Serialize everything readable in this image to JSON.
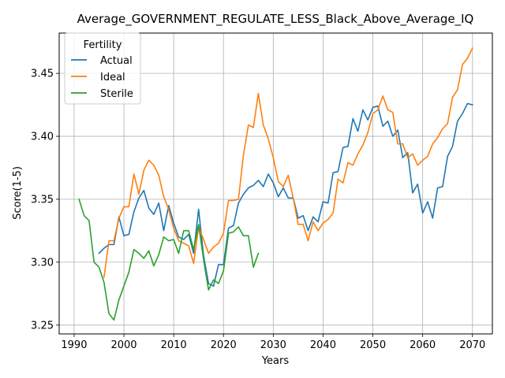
{
  "chart_data": {
    "type": "line",
    "title": "Average_GOVERNMENT_REGULATE_LESS_Black_Above_Average_IQ",
    "xlabel": "Years",
    "ylabel": "Score(1-5)",
    "xlim": [
      1987,
      2074
    ],
    "ylim": [
      3.243,
      3.482
    ],
    "xticks": [
      1990,
      2000,
      2010,
      2020,
      2030,
      2040,
      2050,
      2060,
      2070
    ],
    "yticks": [
      3.25,
      3.3,
      3.35,
      3.4,
      3.45
    ],
    "ytick_labels": [
      "3.25",
      "3.30",
      "3.35",
      "3.40",
      "3.45"
    ],
    "grid": true,
    "legend": {
      "title": "Fertility",
      "position": "top-left"
    },
    "series": [
      {
        "name": "Actual",
        "color": "#1f77b4",
        "x": [
          1995,
          1996,
          1997,
          1998,
          1999,
          2000,
          2001,
          2002,
          2003,
          2004,
          2005,
          2006,
          2007,
          2008,
          2009,
          2010,
          2011,
          2012,
          2013,
          2014,
          2015,
          2016,
          2017,
          2018,
          2019,
          2020,
          2021,
          2022,
          2023,
          2024,
          2025,
          2026,
          2027,
          2028,
          2029,
          2030,
          2031,
          2032,
          2033,
          2034,
          2035,
          2036,
          2037,
          2038,
          2039,
          2040,
          2041,
          2042,
          2043,
          2044,
          2045,
          2046,
          2047,
          2048,
          2049,
          2050,
          2051,
          2052,
          2053,
          2054,
          2055,
          2056,
          2057,
          2058,
          2059,
          2060,
          2061,
          2062,
          2063,
          2064,
          2065,
          2066,
          2067,
          2068,
          2069,
          2070
        ],
        "y": [
          3.307,
          3.311,
          3.314,
          3.314,
          3.336,
          3.321,
          3.322,
          3.34,
          3.351,
          3.357,
          3.343,
          3.338,
          3.347,
          3.325,
          3.345,
          3.331,
          3.32,
          3.318,
          3.322,
          3.307,
          3.342,
          3.305,
          3.283,
          3.281,
          3.298,
          3.298,
          3.327,
          3.329,
          3.347,
          3.354,
          3.359,
          3.361,
          3.365,
          3.36,
          3.37,
          3.363,
          3.352,
          3.359,
          3.351,
          3.351,
          3.335,
          3.337,
          3.325,
          3.336,
          3.332,
          3.348,
          3.347,
          3.371,
          3.372,
          3.391,
          3.392,
          3.414,
          3.404,
          3.421,
          3.413,
          3.423,
          3.424,
          3.408,
          3.412,
          3.4,
          3.405,
          3.383,
          3.387,
          3.355,
          3.362,
          3.339,
          3.348,
          3.335,
          3.359,
          3.36,
          3.384,
          3.392,
          3.412,
          3.418,
          3.426,
          3.425
        ]
      },
      {
        "name": "Ideal",
        "color": "#ff7f0e",
        "x": [
          1996,
          1997,
          1998,
          1999,
          2000,
          2001,
          2002,
          2003,
          2004,
          2005,
          2006,
          2007,
          2008,
          2009,
          2010,
          2011,
          2012,
          2013,
          2014,
          2015,
          2016,
          2017,
          2018,
          2019,
          2020,
          2021,
          2022,
          2023,
          2024,
          2025,
          2026,
          2027,
          2028,
          2029,
          2030,
          2031,
          2032,
          2033,
          2034,
          2035,
          2036,
          2037,
          2038,
          2039,
          2040,
          2041,
          2042,
          2043,
          2044,
          2045,
          2046,
          2047,
          2048,
          2049,
          2050,
          2051,
          2052,
          2053,
          2054,
          2055,
          2056,
          2057,
          2058,
          2059,
          2060,
          2061,
          2062,
          2063,
          2064,
          2065,
          2066,
          2067,
          2068,
          2069,
          2070
        ],
        "y": [
          3.288,
          3.317,
          3.317,
          3.335,
          3.344,
          3.344,
          3.37,
          3.354,
          3.373,
          3.381,
          3.377,
          3.369,
          3.352,
          3.342,
          3.327,
          3.317,
          3.315,
          3.313,
          3.299,
          3.328,
          3.318,
          3.307,
          3.312,
          3.315,
          3.323,
          3.349,
          3.349,
          3.35,
          3.385,
          3.409,
          3.407,
          3.434,
          3.409,
          3.398,
          3.383,
          3.364,
          3.36,
          3.369,
          3.351,
          3.33,
          3.33,
          3.317,
          3.332,
          3.325,
          3.331,
          3.334,
          3.339,
          3.366,
          3.363,
          3.379,
          3.377,
          3.386,
          3.393,
          3.403,
          3.418,
          3.421,
          3.432,
          3.421,
          3.419,
          3.394,
          3.394,
          3.383,
          3.386,
          3.377,
          3.381,
          3.384,
          3.394,
          3.399,
          3.406,
          3.41,
          3.431,
          3.437,
          3.457,
          3.462,
          3.47
        ]
      },
      {
        "name": "Sterile",
        "color": "#2ca02c",
        "x": [
          1991,
          1992,
          1993,
          1994,
          1995,
          1996,
          1997,
          1998,
          1999,
          2000,
          2001,
          2002,
          2003,
          2004,
          2005,
          2006,
          2007,
          2008,
          2009,
          2010,
          2011,
          2012,
          2013,
          2014,
          2015,
          2016,
          2017,
          2018,
          2019,
          2020,
          2021,
          2022,
          2023,
          2024,
          2025,
          2026,
          2027
        ],
        "y": [
          3.35,
          3.337,
          3.333,
          3.3,
          3.296,
          3.284,
          3.259,
          3.254,
          3.27,
          3.281,
          3.292,
          3.31,
          3.307,
          3.303,
          3.309,
          3.297,
          3.306,
          3.32,
          3.317,
          3.318,
          3.307,
          3.325,
          3.325,
          3.31,
          3.33,
          3.302,
          3.278,
          3.286,
          3.283,
          3.293,
          3.323,
          3.324,
          3.328,
          3.321,
          3.321,
          3.296,
          3.307
        ]
      }
    ]
  }
}
